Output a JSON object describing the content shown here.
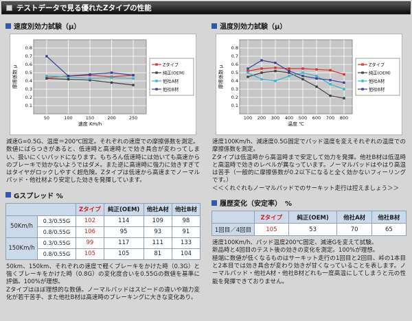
{
  "header": {
    "title": "テストデータで見る優れたZタイプの性能"
  },
  "left": {
    "section_title": "速度別効力試験（μ）",
    "chart_note": "減速G=0.5G、温度＝200℃固定。それぞれの速度での摩擦係数を測定。\n数値にばらつきがあると、低速時と高速時とで効き具合が変わってしまい、扱いにくいパッドになります。もちろん低速時には効いても高速からのブレーキで効かないようではダメ。また逆に高速時に強力に効きすぎてはタイヤがロックしやすく超危険。Zタイプは低速から高速までノーマルパッド・他社材より安定した効きを発揮しています。",
    "table_title": "Gスプレッド %",
    "table_note": "50km、150km、それぞれの速度で軽くブレーキをかけた時（0.3G）と強くブレーキをかけた時（0.8G）の変化度合いを0.55Gの数値を基準に評価。100%が理想。\nZタイプはほぼ理想的な数値。ノーマルパッドはスピードの違いや踏力変化が若干苦手、また他社B材は高速時のブレーキングに大きな変化あり。"
  },
  "right": {
    "section_title": "温度別効力試験（μ）",
    "chart_note": "速度100Km/h、減速度0.5G固定でパッド温度を変えそれぞれの温度での摩擦係数を測定。\nZタイプは低温時から高温時まで安定して効力を発揮。他社B材は低温時と高温時で効きのレベルが異なっています。ノーマルパッドはやはり高温は苦手（一般的に摩擦係数が0.2以下になると全く効かないフィーリングです。）\n＜＜くれぐれもノーマルパッドでのサーキット走行は控えましょう＞＞",
    "table_title": "履歴変化（安定率）　%",
    "table_note": "速度100Km/h、パッド温度200℃固定、減速Gを変えて試験。\n新品時と4回目のテスト後の効きの変化を測定。100%が理想。\n極端に数値が低くなるものはサーキット走行の1回目と2回目、峠の1本目と2本目では効き具合が変わり効きが甘くなっていることを表します。ノーマルパッド・他社A材・他社B材どれも一度高温にしてしまうと元の性能を発揮できておりません。"
  },
  "gspread": {
    "columns": [
      "Zタイプ",
      "純正(OEM)",
      "他社A材",
      "他社B材"
    ],
    "row_groups": [
      "50Km/h",
      "150Km/h"
    ],
    "rows": [
      {
        "cond": "0.3/0.55G",
        "z": "102",
        "oem": "114",
        "a": "109",
        "b": "98"
      },
      {
        "cond": "0.8/0.55G",
        "z": "106",
        "oem": "95",
        "a": "93",
        "b": "91"
      },
      {
        "cond": "0.3/0.55G",
        "z": "99",
        "oem": "117",
        "a": "111",
        "b": "133"
      },
      {
        "cond": "0.8/0.55G",
        "z": "105",
        "oem": "105",
        "a": "81",
        "b": "104"
      }
    ]
  },
  "rireki": {
    "columns": [
      "Zタイプ",
      "純正(OEM)",
      "他社A材",
      "他社B材"
    ],
    "row_label": "1回目／4回目",
    "values": {
      "z": "105",
      "oem": "53",
      "a": "70",
      "b": "65"
    }
  },
  "colors": {
    "accent_blue": "#3358a8",
    "z_red": "#cc1f1f",
    "table_header_bg": "#ccd9e8"
  },
  "chart_data": [
    {
      "type": "line",
      "title": "速度別効力試験（μ）",
      "xlabel": "速度 Km/h",
      "ylabel": "摩擦係数 μ",
      "x": [
        50,
        100,
        150,
        200,
        250
      ],
      "xticks": [
        50,
        100,
        150,
        200,
        250
      ],
      "xlim": [
        20,
        280
      ],
      "yticks": [
        0.1,
        0.2,
        0.3,
        0.4,
        0.5,
        0.6,
        0.7,
        0.8
      ],
      "ylim": [
        0,
        0.9
      ],
      "grid": true,
      "legend_position": "right",
      "series": [
        {
          "name": "Zタイプ",
          "color": "#d8342c",
          "values": [
            0.44,
            0.46,
            0.47,
            0.45,
            0.47
          ]
        },
        {
          "name": "純正(OEM)",
          "color": "#404040",
          "values": [
            0.43,
            0.42,
            0.41,
            0.38,
            0.35
          ]
        },
        {
          "name": "他社A材",
          "color": "#35b6c9",
          "values": [
            0.46,
            0.45,
            0.43,
            0.44,
            0.43
          ]
        },
        {
          "name": "他社B材",
          "color": "#3a3e99",
          "values": [
            0.7,
            0.46,
            0.48,
            0.5,
            0.47
          ]
        }
      ]
    },
    {
      "type": "line",
      "title": "温度別効力試験（μ）",
      "xlabel": "温度 ℃",
      "ylabel": "摩擦係数 μ",
      "x": [
        100,
        200,
        300,
        400,
        500,
        600,
        700,
        800
      ],
      "xticks": [
        100,
        200,
        300,
        400,
        500,
        600,
        700,
        800
      ],
      "xlim": [
        40,
        860
      ],
      "yticks": [
        0.1,
        0.2,
        0.3,
        0.4,
        0.5,
        0.6,
        0.7,
        0.8
      ],
      "ylim": [
        0,
        0.9
      ],
      "grid": true,
      "legend_position": "right",
      "series": [
        {
          "name": "Zタイプ",
          "color": "#d8342c",
          "values": [
            0.52,
            0.55,
            0.56,
            0.55,
            0.55,
            0.54,
            0.53,
            0.48
          ]
        },
        {
          "name": "純正(OEM)",
          "color": "#404040",
          "values": [
            0.45,
            0.5,
            0.52,
            0.5,
            0.42,
            0.33,
            0.22,
            0.19
          ]
        },
        {
          "name": "他社A材",
          "color": "#35b6c9",
          "values": [
            0.5,
            0.42,
            0.4,
            0.46,
            0.5,
            0.46,
            0.36,
            0.3
          ]
        },
        {
          "name": "他社B材",
          "color": "#3a3e99",
          "values": [
            0.55,
            0.65,
            0.62,
            0.52,
            0.46,
            0.43,
            0.41,
            0.38
          ]
        }
      ]
    }
  ]
}
